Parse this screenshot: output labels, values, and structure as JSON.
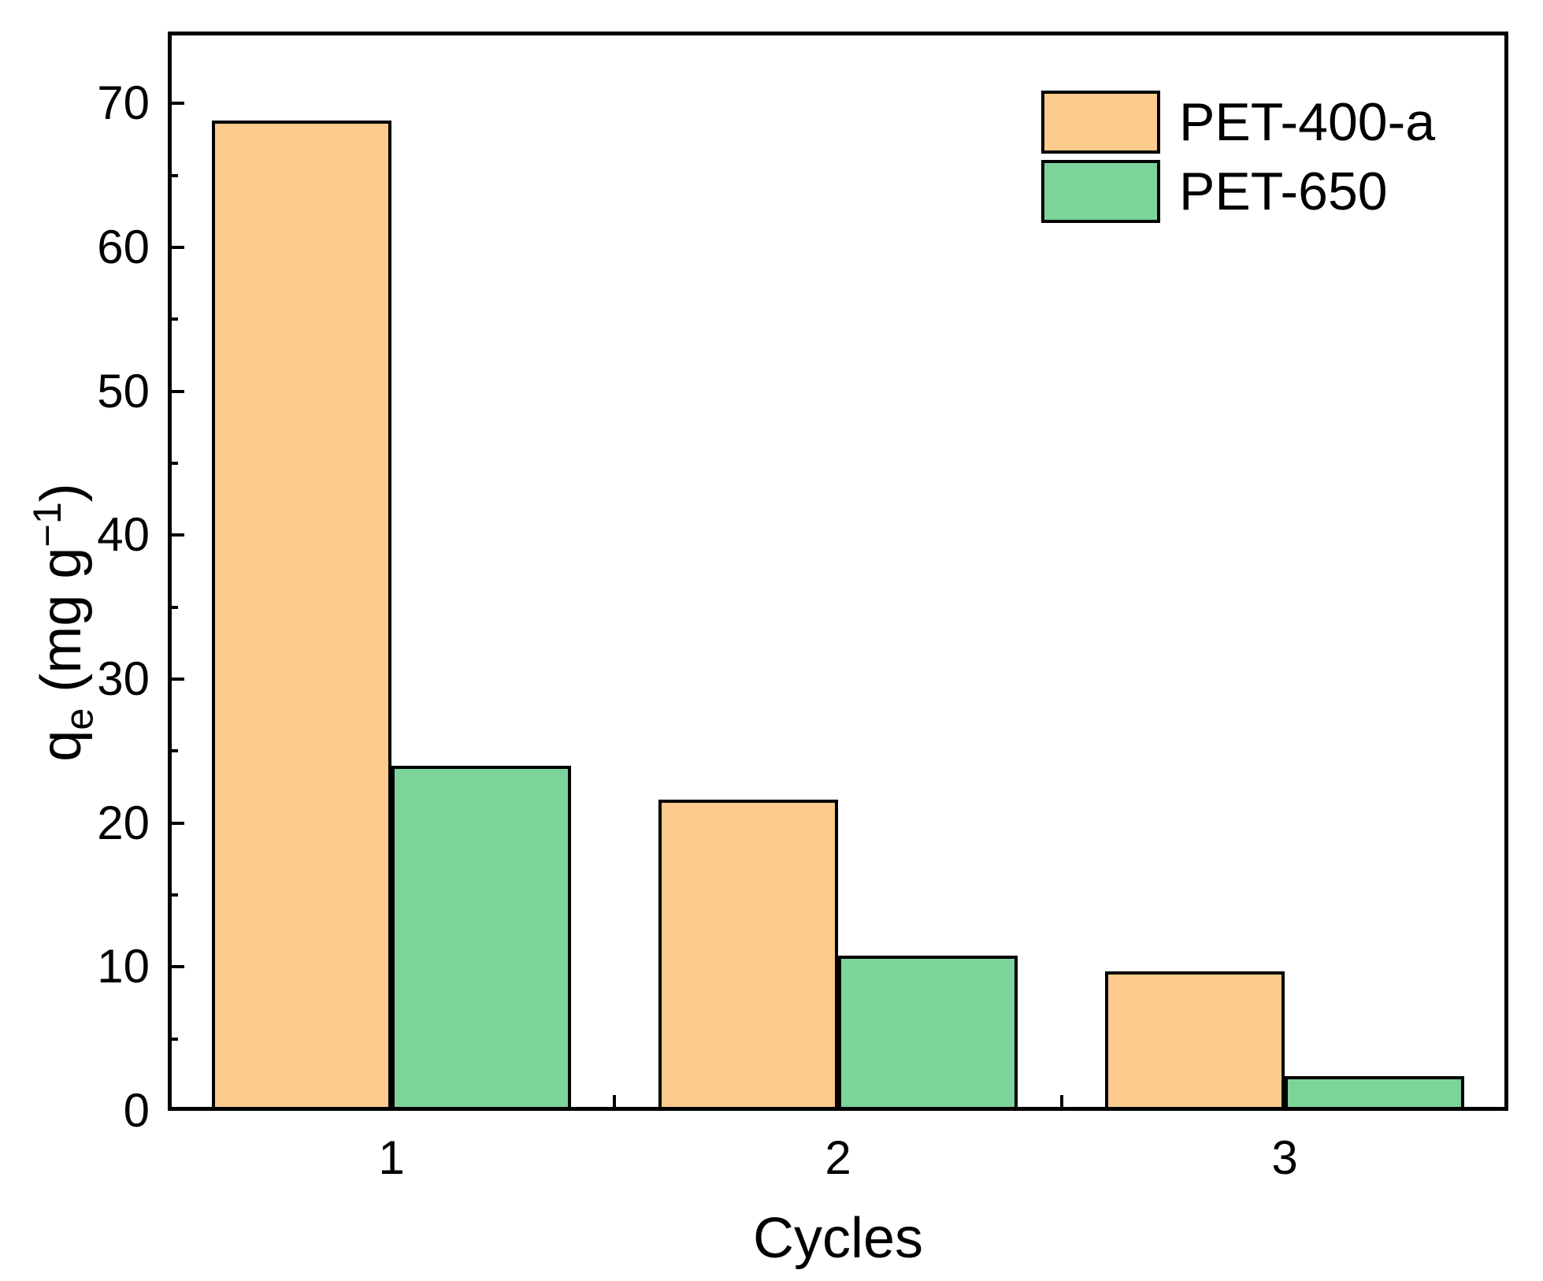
{
  "figure": {
    "background": "#ffffff",
    "frame_color": "#000000"
  },
  "chart_data": {
    "type": "bar",
    "title": "",
    "xlabel": "Cycles",
    "ylabel": "qe (mg g−1)",
    "ylabel_parts": {
      "base": "q",
      "sub": "e",
      "mid": " (mg g",
      "sup": "−1",
      "end": ")"
    },
    "categories": [
      "1",
      "2",
      "3"
    ],
    "series": [
      {
        "name": "PET-400-a",
        "color": "#fdcb8d",
        "values": [
          68.8,
          21.6,
          9.7
        ]
      },
      {
        "name": "PET-650",
        "color": "#7cd49b",
        "values": [
          24.0,
          10.8,
          2.4
        ]
      }
    ],
    "ylim": [
      0,
      75
    ],
    "yticks": [
      0,
      10,
      20,
      30,
      40,
      50,
      60,
      70
    ],
    "y_minor_step": 5,
    "grid": false,
    "legend_position": "top-right",
    "bar_edge_color": "#000000",
    "tick_direction": "in"
  }
}
